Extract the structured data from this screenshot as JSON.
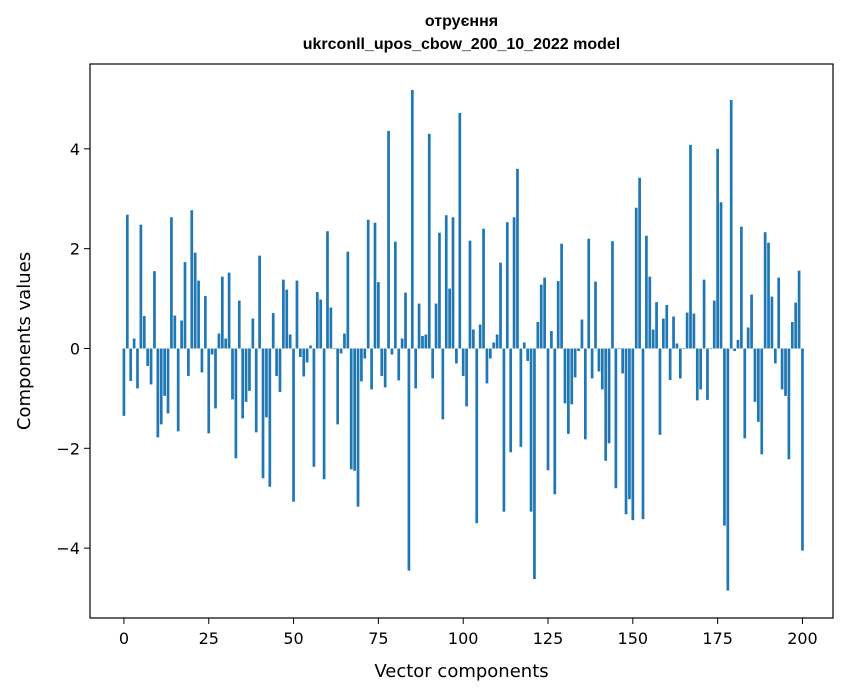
{
  "chart_data": {
    "type": "bar",
    "title_line1": "отруєння",
    "title_line2": "ukrconll_upos_cbow_200_10_2022 model",
    "xlabel": "Vector components",
    "ylabel": "Components values",
    "xlim": [
      -10,
      209
    ],
    "ylim": [
      -5.4,
      5.7
    ],
    "xticks": [
      0,
      25,
      50,
      75,
      100,
      125,
      150,
      175,
      200
    ],
    "yticks": [
      -4,
      -2,
      0,
      2,
      4
    ],
    "ytick_labels": [
      "−4",
      "−2",
      "0",
      "2",
      "4"
    ],
    "bar_color": "#1f77b4",
    "values": [
      -1.35,
      2.68,
      -0.65,
      0.2,
      -0.8,
      2.48,
      0.65,
      -0.35,
      -0.72,
      1.55,
      -1.78,
      -1.52,
      -0.95,
      -1.3,
      2.63,
      0.66,
      -1.66,
      0.56,
      1.73,
      -0.55,
      2.77,
      1.92,
      1.36,
      -0.48,
      1.05,
      -1.7,
      -0.12,
      -1.2,
      0.3,
      1.44,
      0.2,
      1.52,
      -1.02,
      -2.2,
      0.96,
      -1.4,
      -1.07,
      -0.85,
      0.6,
      -1.68,
      1.86,
      -2.6,
      -1.38,
      -2.77,
      0.71,
      -0.55,
      -0.87,
      1.38,
      1.18,
      0.28,
      -3.07,
      1.36,
      -0.17,
      -0.56,
      -0.28,
      0.06,
      -2.37,
      1.13,
      0.98,
      -2.62,
      2.35,
      0.82,
      0.0,
      -1.52,
      -0.1,
      0.3,
      1.94,
      -2.42,
      -2.45,
      -3.17,
      -0.66,
      -0.2,
      2.58,
      -0.82,
      2.52,
      1.33,
      -0.55,
      -0.78,
      4.36,
      -0.12,
      2.14,
      -0.64,
      0.2,
      1.12,
      -4.45,
      5.18,
      -0.8,
      0.9,
      0.25,
      0.28,
      4.3,
      -0.6,
      0.9,
      2.32,
      -1.42,
      2.67,
      1.2,
      2.63,
      -0.3,
      4.72,
      -0.55,
      -1.16,
      2.16,
      0.38,
      -3.5,
      0.48,
      2.4,
      -0.7,
      -0.2,
      0.12,
      0.28,
      1.72,
      -3.27,
      2.53,
      -2.08,
      2.63,
      3.6,
      -1.97,
      0.12,
      -0.25,
      -3.27,
      -4.62,
      0.53,
      1.28,
      1.42,
      -2.44,
      0.35,
      -2.92,
      1.35,
      2.1,
      -1.1,
      -1.71,
      -1.12,
      -0.58,
      -0.05,
      0.58,
      -1.82,
      2.2,
      -0.6,
      1.34,
      -0.46,
      -0.82,
      -2.25,
      -1.9,
      2.15,
      -2.8,
      0.0,
      -0.5,
      -3.32,
      -3.02,
      -3.44,
      2.82,
      3.42,
      -3.42,
      2.26,
      1.44,
      0.38,
      0.93,
      -1.73,
      0.6,
      0.87,
      -0.63,
      0.64,
      0.1,
      -0.6,
      0.0,
      0.72,
      4.08,
      0.7,
      -1.04,
      -0.82,
      1.38,
      -1.03,
      0.0,
      0.96,
      4.0,
      2.93,
      -3.55,
      -4.85,
      4.98,
      -0.05,
      0.17,
      2.44,
      -1.8,
      0.42,
      1.08,
      -1.07,
      -1.47,
      -2.12,
      2.33,
      2.12,
      1.04,
      -0.3,
      1.42,
      -0.82,
      -0.95,
      -2.22,
      0.53,
      0.92,
      1.56,
      -4.05
    ]
  }
}
